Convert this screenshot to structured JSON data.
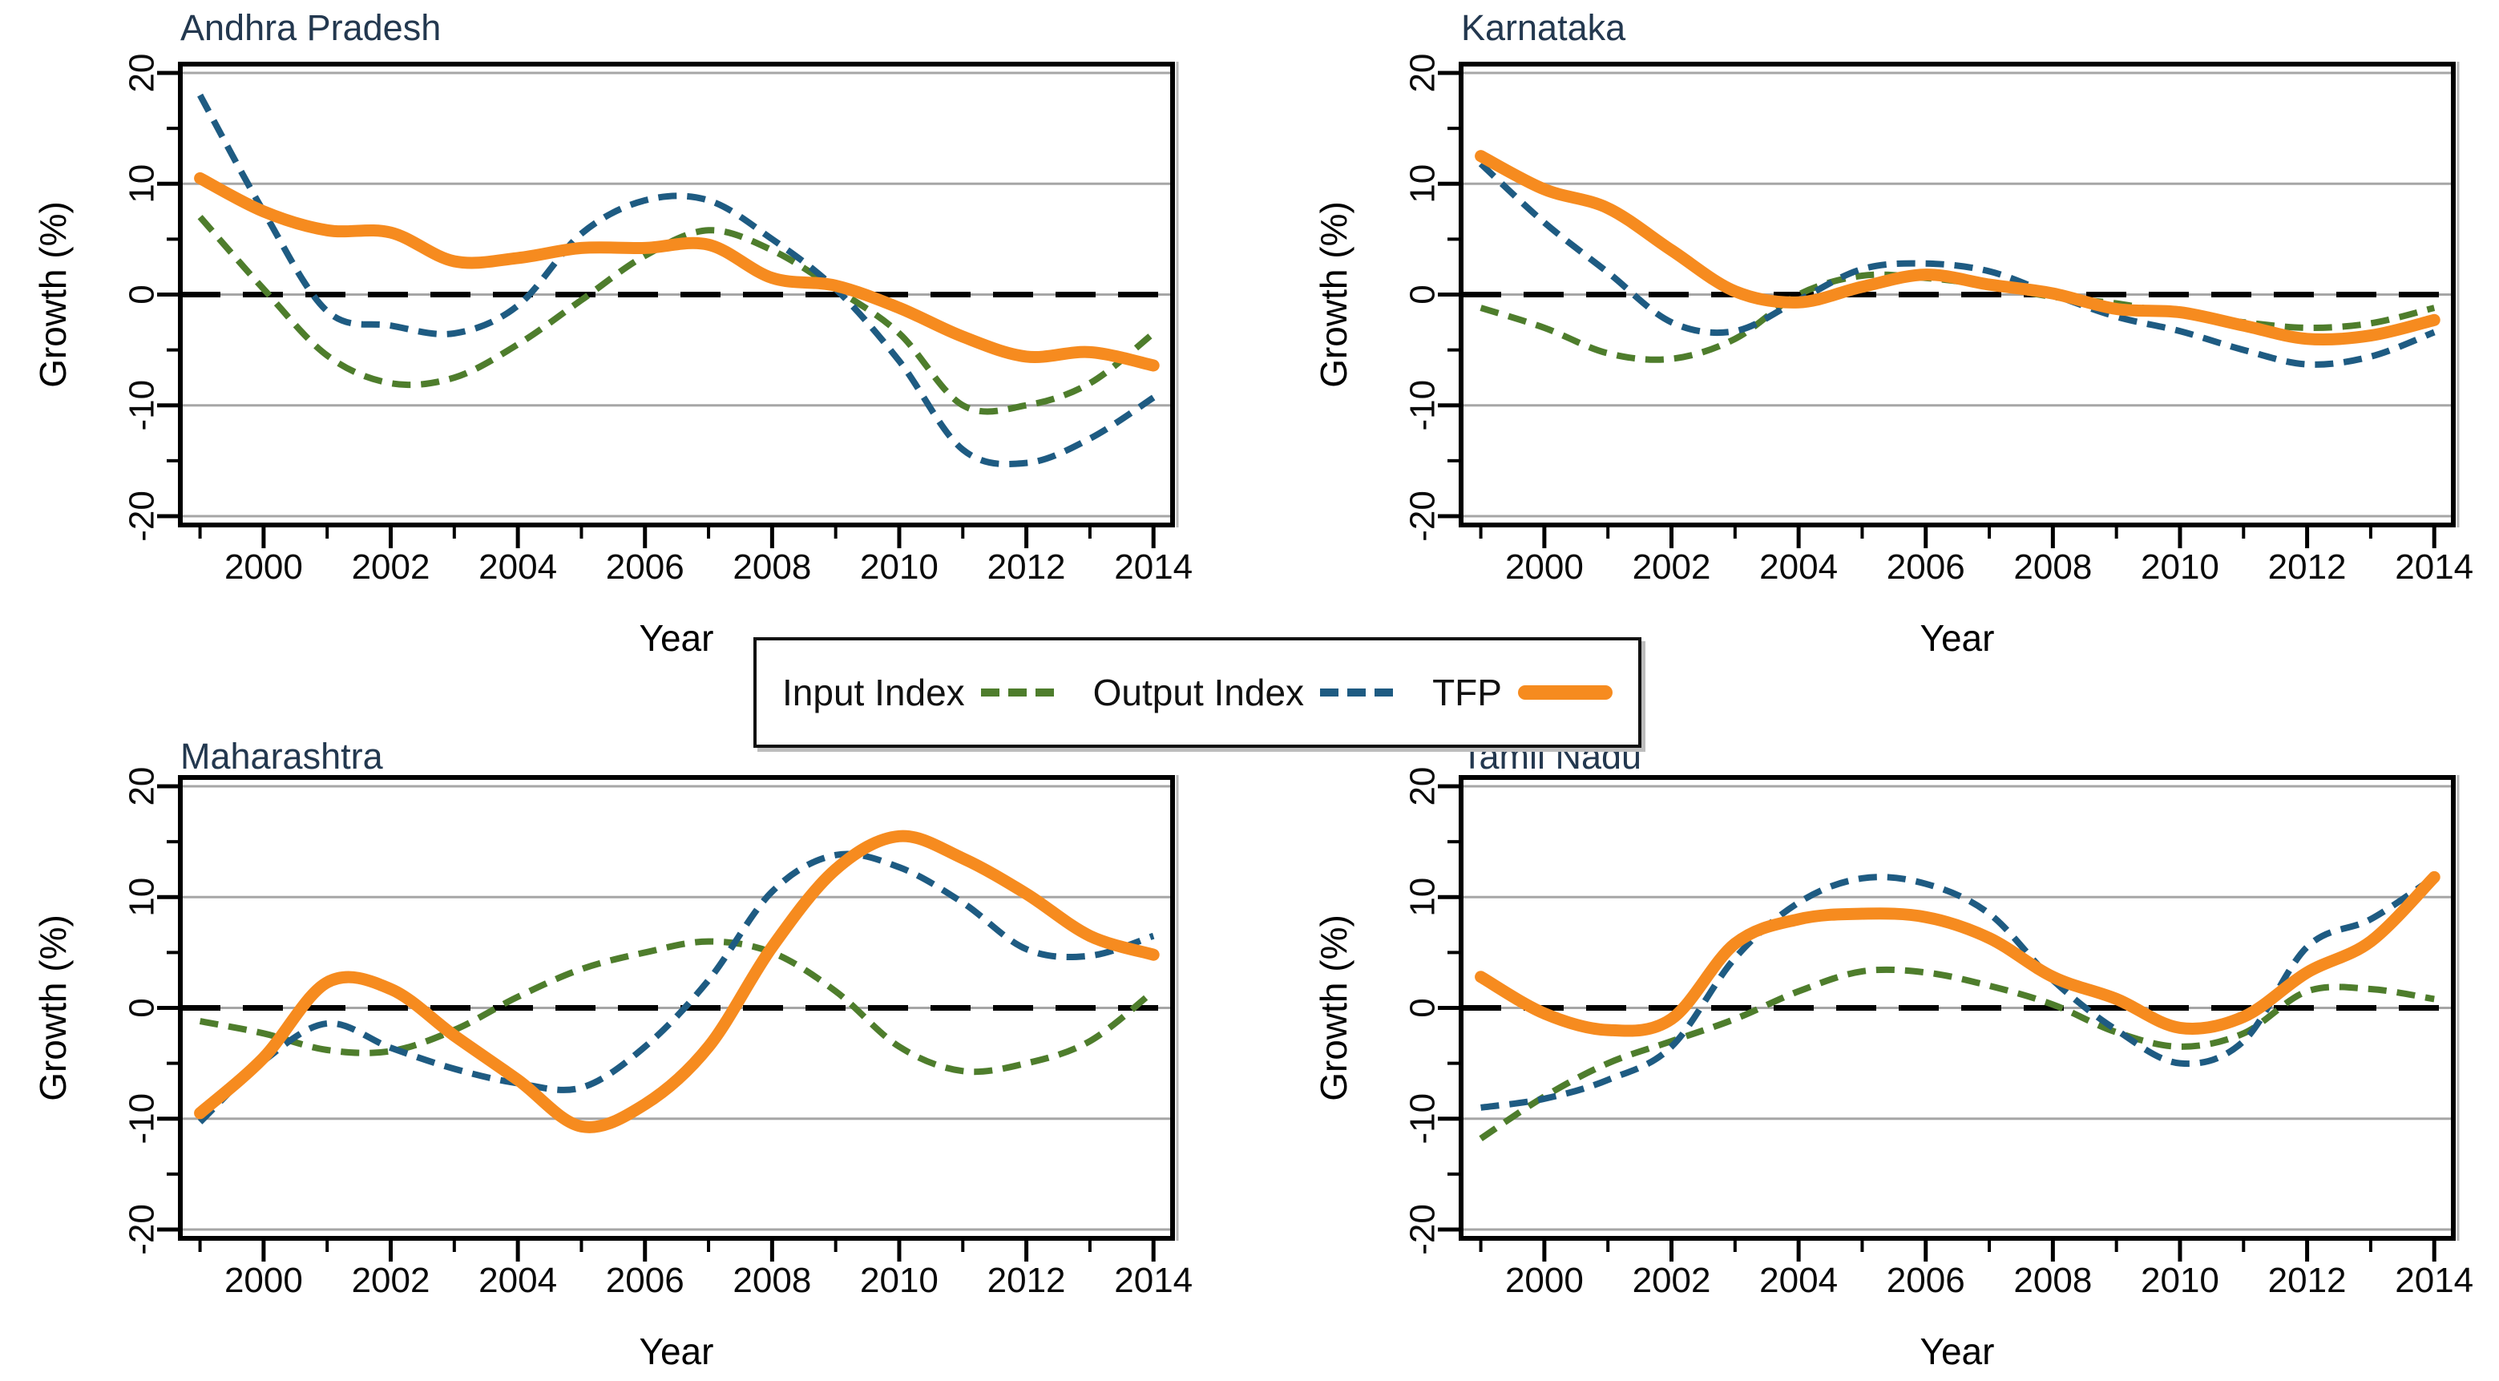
{
  "figure": {
    "xlabel": "Year",
    "ylabel": "Growth (%)",
    "x_ticks": [
      2000,
      2002,
      2004,
      2006,
      2008,
      2010,
      2012,
      2014
    ],
    "x_minor_ticks": [
      1999,
      2001,
      2003,
      2005,
      2007,
      2009,
      2011,
      2013
    ],
    "y_ticks": [
      20,
      10,
      0,
      -10,
      -20
    ],
    "y_minor_ticks": [
      15,
      5,
      -5,
      -15
    ],
    "ylim": [
      -20.8,
      20.8
    ],
    "xrange": [
      1999,
      2014
    ],
    "background_color": "#ffffff",
    "grid_color": "#a6a6a6",
    "axis_color": "#000000",
    "title_color": "#23384f",
    "tick_label_color": "#0a0a0a",
    "zero_line_color": "#000000",
    "zero_line_style": "dashed"
  },
  "legend": {
    "items": [
      {
        "label": "Input Index",
        "color": "#4E7D2C",
        "style": "dashed"
      },
      {
        "label": "Output Index",
        "color": "#1E5B82",
        "style": "dashed"
      },
      {
        "label": "TFP",
        "color": "#F68B1F",
        "style": "solid-thick"
      }
    ]
  },
  "chart_data": [
    {
      "type": "line",
      "title": "Andhra Pradesh",
      "xlabel": "Year",
      "ylabel": "Growth (%)",
      "x": [
        1999,
        2000,
        2001,
        2002,
        2003,
        2004,
        2005,
        2006,
        2007,
        2008,
        2009,
        2010,
        2011,
        2012,
        2013,
        2014
      ],
      "series": [
        {
          "name": "Input Index",
          "values": [
            7,
            0.5,
            -5.5,
            -8,
            -7.5,
            -4.5,
            -0.5,
            3.5,
            5.8,
            4,
            0.5,
            -3.5,
            -10,
            -10,
            -8,
            -3.5
          ]
        },
        {
          "name": "Output Index",
          "values": [
            18,
            7.5,
            -1.5,
            -2.8,
            -3.5,
            -1,
            5.5,
            8.5,
            8.5,
            5,
            0.5,
            -6,
            -14,
            -15.2,
            -13,
            -9.3
          ]
        },
        {
          "name": "TFP",
          "values": [
            10.5,
            7.5,
            5.8,
            5.6,
            3,
            3.3,
            4.2,
            4.2,
            4.5,
            1.5,
            0.8,
            -1.2,
            -3.8,
            -5.6,
            -5.2,
            -6.4
          ]
        }
      ]
    },
    {
      "type": "line",
      "title": "Karnataka",
      "xlabel": "Year",
      "ylabel": "Growth (%)",
      "x": [
        1999,
        2000,
        2001,
        2002,
        2003,
        2004,
        2005,
        2006,
        2007,
        2008,
        2009,
        2010,
        2011,
        2012,
        2013,
        2014
      ],
      "series": [
        {
          "name": "Input Index",
          "values": [
            -1.2,
            -3,
            -5.3,
            -5.8,
            -4,
            0,
            1.7,
            1.5,
            0.8,
            -0.2,
            -0.8,
            -1.8,
            -2.5,
            -3,
            -2.6,
            -1.2
          ]
        },
        {
          "name": "Output Index",
          "values": [
            11.8,
            6.5,
            2,
            -2.5,
            -3.3,
            -0.5,
            2.3,
            2.8,
            2.1,
            0,
            -2,
            -3.3,
            -5,
            -6.3,
            -5.6,
            -3.4
          ]
        },
        {
          "name": "TFP",
          "values": [
            12.5,
            9.5,
            7.8,
            4,
            0.3,
            -0.7,
            0.7,
            1.8,
            0.9,
            0.1,
            -1.3,
            -1.6,
            -2.8,
            -4,
            -3.7,
            -2.3
          ]
        }
      ]
    },
    {
      "type": "line",
      "title": "Maharashtra",
      "xlabel": "Year",
      "ylabel": "Growth (%)",
      "x": [
        1999,
        2000,
        2001,
        2002,
        2003,
        2004,
        2005,
        2006,
        2007,
        2008,
        2009,
        2010,
        2011,
        2012,
        2013,
        2014
      ],
      "series": [
        {
          "name": "Input Index",
          "values": [
            -1.2,
            -2.3,
            -3.8,
            -3.9,
            -2,
            1,
            3.5,
            5,
            6,
            5,
            1.5,
            -3.5,
            -5.7,
            -5,
            -3,
            1.5
          ]
        },
        {
          "name": "Output Index",
          "values": [
            -10.3,
            -4.8,
            -1.4,
            -3.6,
            -5.5,
            -6.8,
            -7.2,
            -3.5,
            2.5,
            10.5,
            13.8,
            12.7,
            9.5,
            5.3,
            4.7,
            6.5
          ]
        },
        {
          "name": "TFP",
          "values": [
            -9.5,
            -4.5,
            2.3,
            1.7,
            -2.5,
            -6.5,
            -10.7,
            -8.7,
            -3.5,
            5.5,
            12.5,
            15.5,
            13.5,
            10.3,
            6.5,
            4.8
          ]
        }
      ]
    },
    {
      "type": "line",
      "title": "Tamil Nadu",
      "xlabel": "Year",
      "ylabel": "Growth (%)",
      "x": [
        1999,
        2000,
        2001,
        2002,
        2003,
        2004,
        2005,
        2006,
        2007,
        2008,
        2009,
        2010,
        2011,
        2012,
        2013,
        2014
      ],
      "series": [
        {
          "name": "Input Index",
          "values": [
            -11.8,
            -8,
            -5,
            -3,
            -1,
            1.5,
            3.3,
            3.2,
            2,
            0.3,
            -2.2,
            -3.5,
            -2.3,
            1.5,
            1.7,
            0.8
          ]
        },
        {
          "name": "Output Index",
          "values": [
            -9,
            -8.2,
            -6.5,
            -3.5,
            4.5,
            9.5,
            11.7,
            11.2,
            8.5,
            2.5,
            -2,
            -5,
            -3,
            5.5,
            8,
            11.8
          ]
        },
        {
          "name": "TFP",
          "values": [
            2.8,
            -0.5,
            -2,
            -1,
            5.8,
            8,
            8.5,
            8.2,
            6.3,
            2.8,
            0.8,
            -1.8,
            -0.8,
            3.2,
            6,
            11.8
          ]
        }
      ]
    }
  ]
}
